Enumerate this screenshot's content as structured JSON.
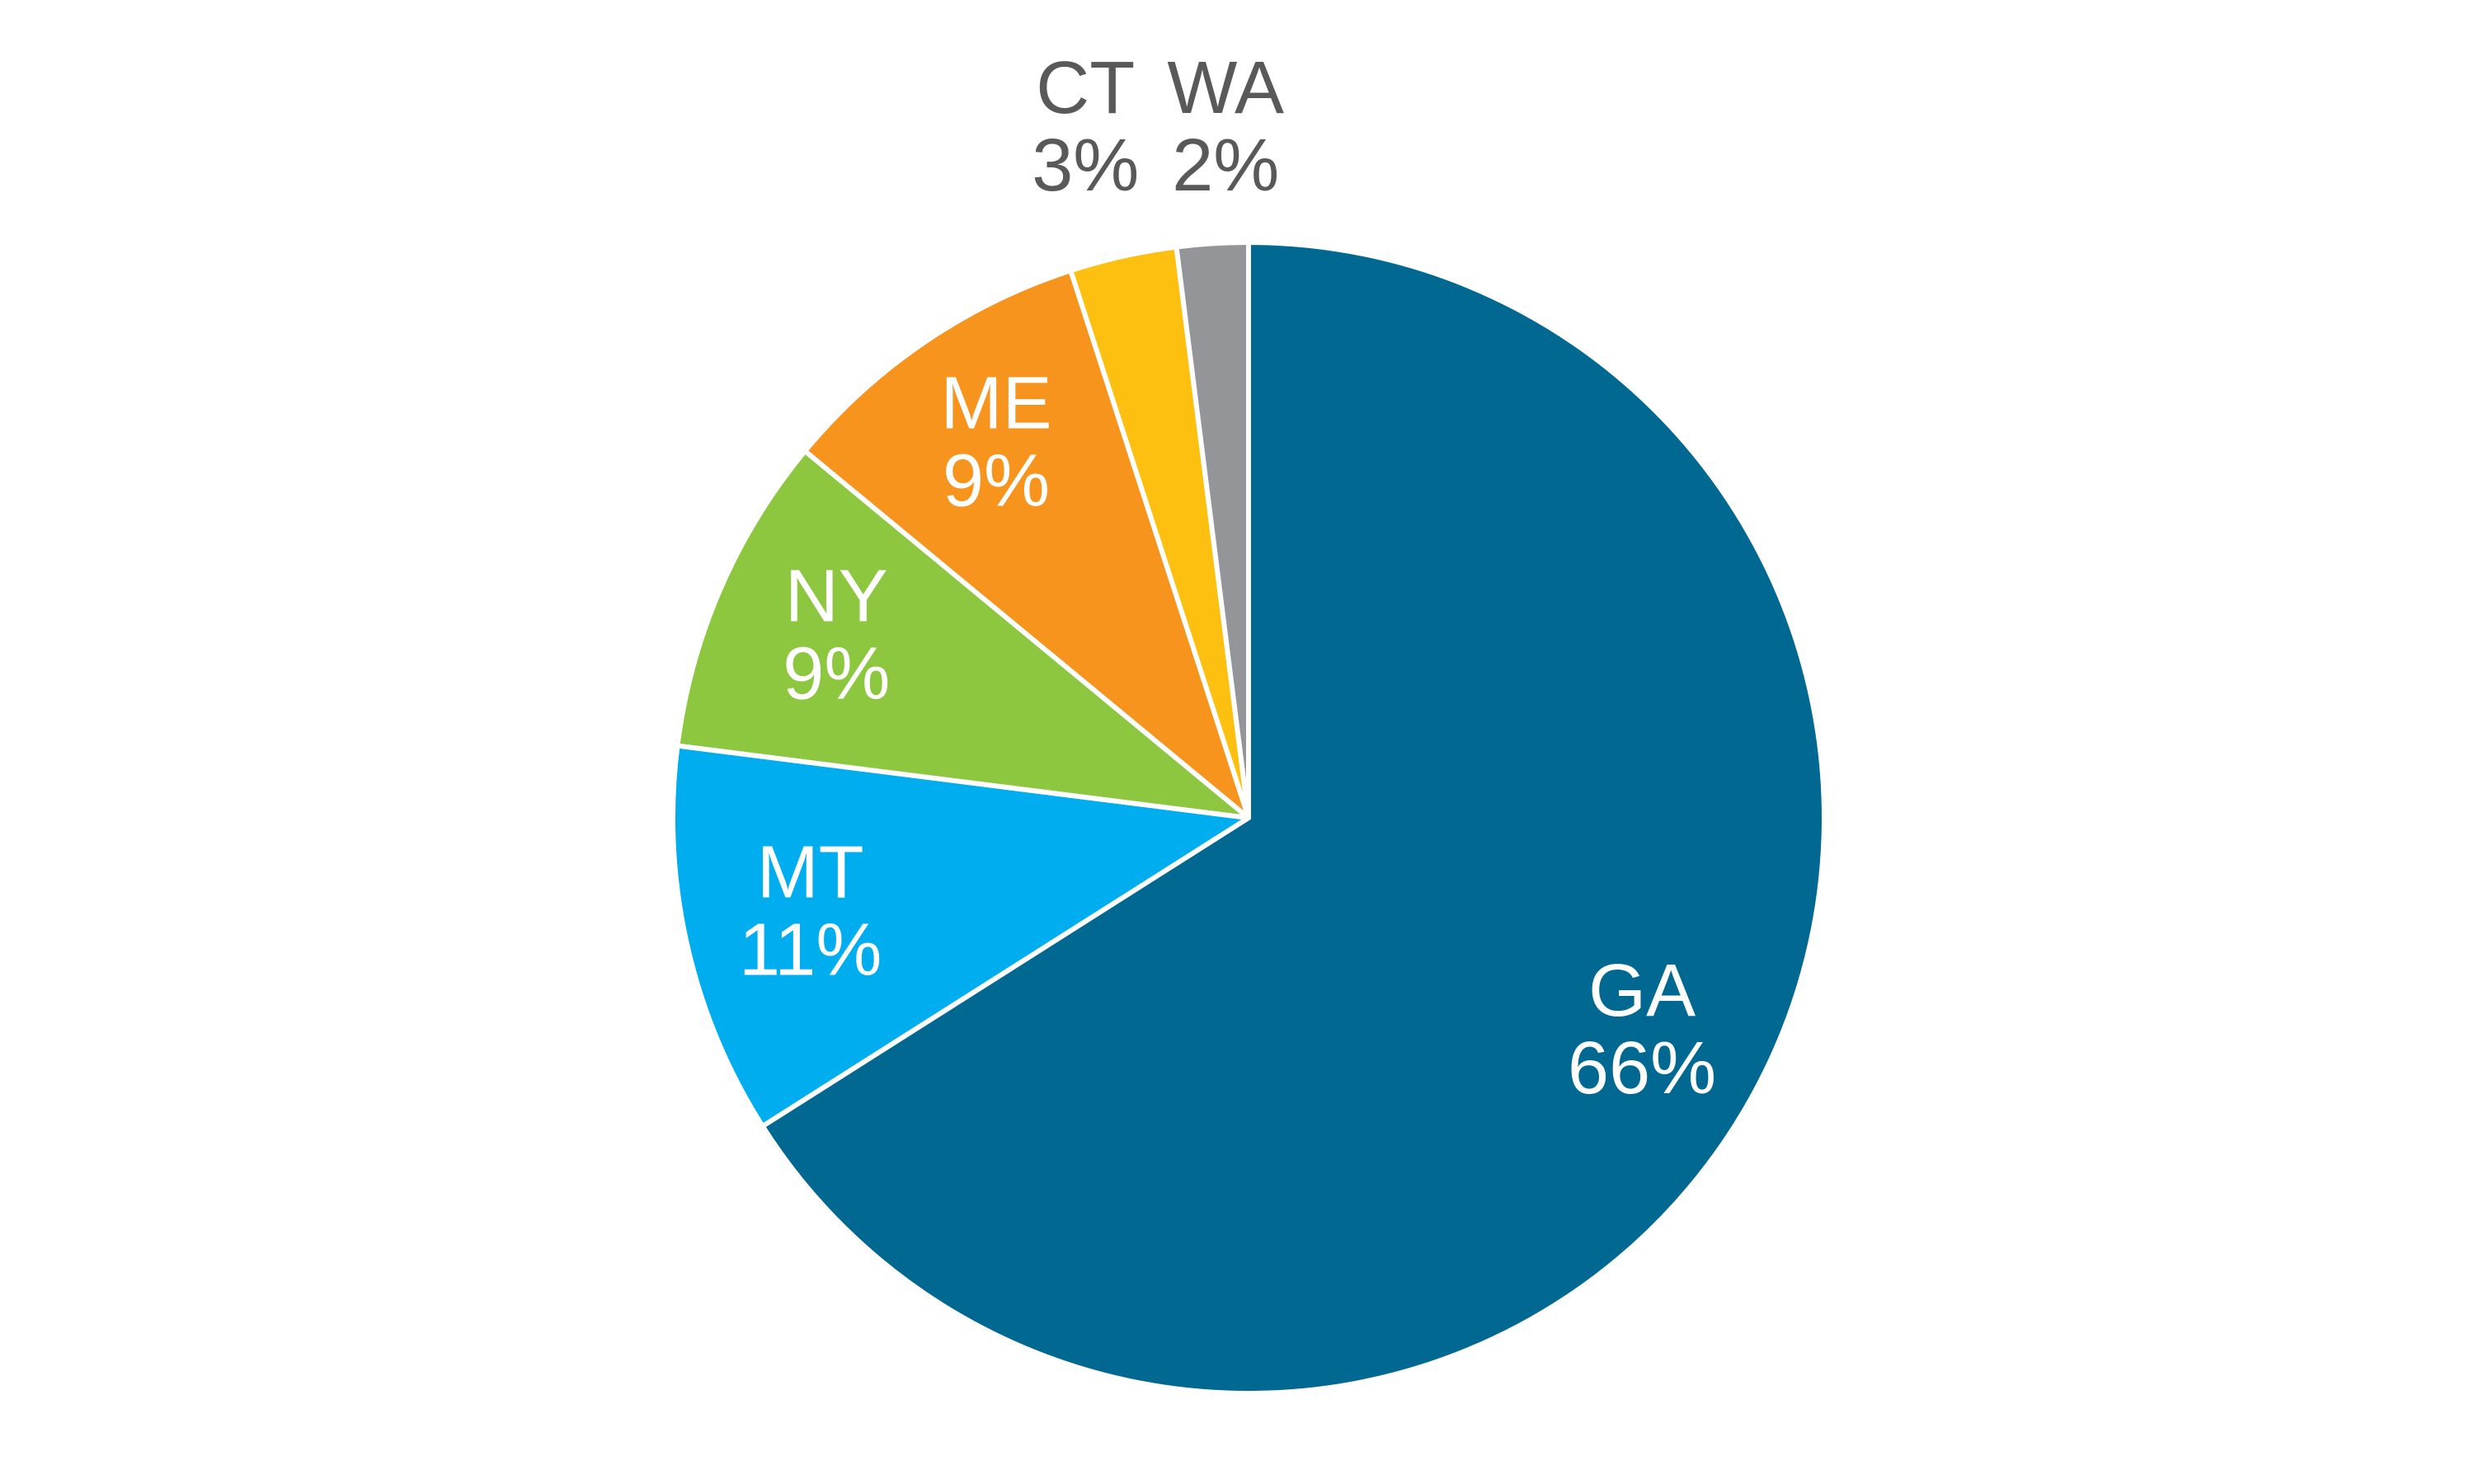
{
  "chart_data": {
    "type": "pie",
    "categories": [
      "GA",
      "MT",
      "NY",
      "ME",
      "CT",
      "WA"
    ],
    "values": [
      66,
      11,
      9,
      9,
      3,
      2
    ],
    "value_labels": [
      "66%",
      "11%",
      "9%",
      "9%",
      "3%",
      "2%"
    ],
    "colors": [
      "#006891",
      "#00aeef",
      "#8dc63f",
      "#f7941d",
      "#fdc010",
      "#939598"
    ]
  }
}
